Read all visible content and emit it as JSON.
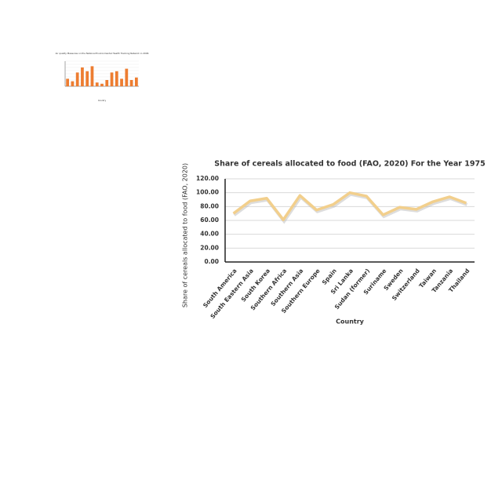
{
  "chart_data": [
    {
      "type": "bar",
      "title": "Air quality Measures on the National Environmental Health Tracking Network in 2006",
      "xlabel": "Country",
      "categories": [
        null,
        null,
        null,
        null,
        null,
        null,
        null,
        null,
        null,
        null,
        null,
        null,
        null,
        null,
        null
      ],
      "values": [
        30,
        20,
        55,
        75,
        60,
        80,
        15,
        10,
        25,
        55,
        60,
        30,
        70,
        25,
        35
      ],
      "color": "#ed7d31",
      "ylim": [
        0,
        100
      ],
      "grid": true
    },
    {
      "type": "line",
      "title": "Share of cereals allocated to food (FAO, 2020)  For the Year 1975",
      "xlabel": "Country",
      "ylabel": "Share of cereals allocated to food (FAO, 2020)",
      "categories": [
        "South America",
        "South Eastern Asia",
        "South Korea",
        "Southern Africa",
        "Southern Asia",
        "Southern Europe",
        "Spain",
        "Sri Lanka",
        "Sudan (former)",
        "Suriname",
        "Sweden",
        "Switzerland",
        "Taiwan",
        "Tanzania",
        "Thailand"
      ],
      "values": [
        70,
        88,
        92,
        61,
        96,
        75,
        83,
        100,
        95,
        68,
        79,
        76,
        87,
        94,
        85
      ],
      "color": "#f2cf8c",
      "ylim": [
        0,
        120
      ],
      "yticks": [
        {
          "value": 0,
          "label": "0.00"
        },
        {
          "value": 20,
          "label": "20.00"
        },
        {
          "value": 40,
          "label": "40.00"
        },
        {
          "value": 60,
          "label": "60.00"
        },
        {
          "value": 80,
          "label": "80.00"
        },
        {
          "value": 100,
          "label": "100.00"
        },
        {
          "value": 120,
          "label": "120.00"
        }
      ],
      "grid": true
    }
  ]
}
